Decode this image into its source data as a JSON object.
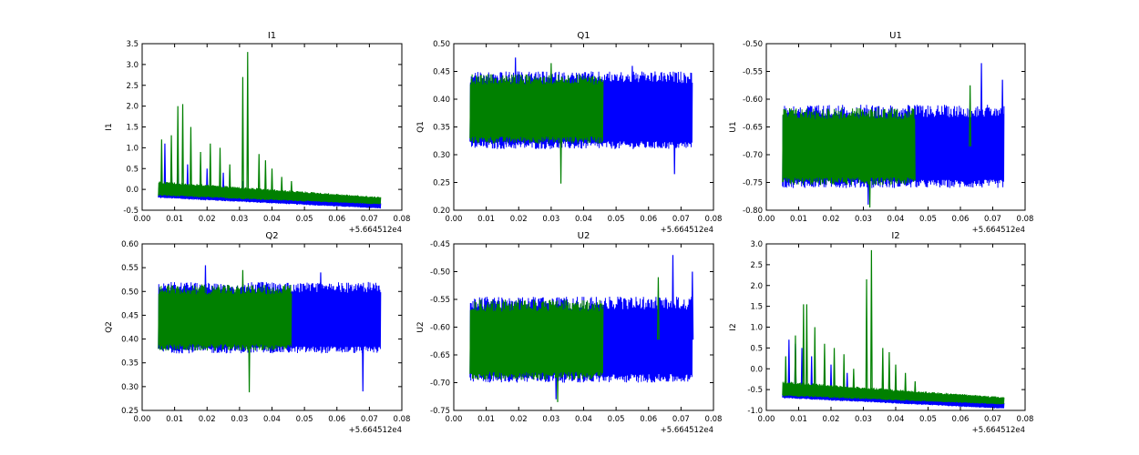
{
  "colors": {
    "series_a": "#0000ff",
    "series_b": "#008000"
  },
  "chart_data": [
    {
      "type": "line",
      "title": "I1",
      "xlabel": "",
      "ylabel": "I1",
      "x_offset_label": "+5.664512e4",
      "xlim": [
        0.0,
        0.08
      ],
      "ylim": [
        -0.5,
        3.5
      ],
      "xticks": [
        "0.00",
        "0.01",
        "0.02",
        "0.03",
        "0.04",
        "0.05",
        "0.06",
        "0.07",
        "0.08"
      ],
      "yticks": [
        "-0.5",
        "0.0",
        "0.5",
        "1.0",
        "1.5",
        "2.0",
        "2.5",
        "3.0",
        "3.5"
      ],
      "x_range": [
        0.005,
        0.0735
      ],
      "series": [
        {
          "color": "#0000ff",
          "baseline_start": -0.15,
          "baseline_end": -0.4,
          "band_low": -0.1,
          "band_high": 0.1,
          "dense_until": 0.0735,
          "spikes": [
            [
              0.007,
              1.1
            ],
            [
              0.009,
              0.7
            ],
            [
              0.011,
              0.9
            ],
            [
              0.014,
              0.6
            ],
            [
              0.02,
              0.5
            ],
            [
              0.025,
              0.4
            ],
            [
              0.031,
              0.2
            ]
          ]
        },
        {
          "color": "#008000",
          "baseline_start": -0.1,
          "baseline_end": -0.3,
          "band_low": -0.1,
          "band_high": 0.2,
          "dense_until": 0.0735,
          "spikes": [
            [
              0.006,
              1.2
            ],
            [
              0.009,
              1.3
            ],
            [
              0.011,
              2.0
            ],
            [
              0.0125,
              2.05
            ],
            [
              0.015,
              1.5
            ],
            [
              0.018,
              0.9
            ],
            [
              0.021,
              1.1
            ],
            [
              0.024,
              1.0
            ],
            [
              0.027,
              0.6
            ],
            [
              0.031,
              2.7
            ],
            [
              0.0325,
              3.3
            ],
            [
              0.036,
              0.85
            ],
            [
              0.038,
              0.7
            ],
            [
              0.04,
              0.5
            ],
            [
              0.043,
              0.3
            ],
            [
              0.046,
              0.2
            ]
          ]
        }
      ]
    },
    {
      "type": "line",
      "title": "Q1",
      "xlabel": "",
      "ylabel": "Q1",
      "x_offset_label": "+5.664512e4",
      "xlim": [
        0.0,
        0.08
      ],
      "ylim": [
        0.2,
        0.5
      ],
      "xticks": [
        "0.00",
        "0.01",
        "0.02",
        "0.03",
        "0.04",
        "0.05",
        "0.06",
        "0.07",
        "0.08"
      ],
      "yticks": [
        "0.20",
        "0.25",
        "0.30",
        "0.35",
        "0.40",
        "0.45",
        "0.50"
      ],
      "x_range": [
        0.005,
        0.0735
      ],
      "series": [
        {
          "color": "#0000ff",
          "band_low": 0.31,
          "band_high": 0.45,
          "dense_until": 0.0735,
          "spikes": [
            [
              0.019,
              0.475
            ],
            [
              0.068,
              0.265
            ],
            [
              0.055,
              0.46
            ]
          ]
        },
        {
          "color": "#008000",
          "band_low": 0.32,
          "band_high": 0.445,
          "dense_until": 0.046,
          "spikes": [
            [
              0.033,
              0.248
            ],
            [
              0.03,
              0.465
            ]
          ]
        }
      ]
    },
    {
      "type": "line",
      "title": "U1",
      "xlabel": "",
      "ylabel": "U1",
      "x_offset_label": "+5.664512e4",
      "xlim": [
        0.0,
        0.08
      ],
      "ylim": [
        -0.8,
        -0.5
      ],
      "xticks": [
        "0.00",
        "0.01",
        "0.02",
        "0.03",
        "0.04",
        "0.05",
        "0.06",
        "0.07",
        "0.08"
      ],
      "yticks": [
        "-0.80",
        "-0.75",
        "-0.70",
        "-0.65",
        "-0.60",
        "-0.55",
        "-0.50"
      ],
      "x_range": [
        0.005,
        0.0735
      ],
      "series": [
        {
          "color": "#0000ff",
          "band_low": -0.76,
          "band_high": -0.61,
          "dense_until": 0.0735,
          "spikes": [
            [
              0.0315,
              -0.79
            ],
            [
              0.0665,
              -0.535
            ],
            [
              0.073,
              -0.565
            ]
          ]
        },
        {
          "color": "#008000",
          "band_low": -0.755,
          "band_high": -0.615,
          "dense_until": 0.046,
          "spikes": [
            [
              0.032,
              -0.795
            ],
            [
              0.063,
              -0.575
            ]
          ]
        }
      ]
    },
    {
      "type": "line",
      "title": "Q2",
      "xlabel": "",
      "ylabel": "Q2",
      "x_offset_label": "+5.664512e4",
      "xlim": [
        0.0,
        0.08
      ],
      "ylim": [
        0.25,
        0.6
      ],
      "xticks": [
        "0.00",
        "0.01",
        "0.02",
        "0.03",
        "0.04",
        "0.05",
        "0.06",
        "0.07",
        "0.08"
      ],
      "yticks": [
        "0.25",
        "0.30",
        "0.35",
        "0.40",
        "0.45",
        "0.50",
        "0.55",
        "0.60"
      ],
      "x_range": [
        0.005,
        0.0735
      ],
      "series": [
        {
          "color": "#0000ff",
          "band_low": 0.37,
          "band_high": 0.52,
          "dense_until": 0.0735,
          "spikes": [
            [
              0.0195,
              0.555
            ],
            [
              0.068,
              0.29
            ],
            [
              0.055,
              0.54
            ]
          ]
        },
        {
          "color": "#008000",
          "band_low": 0.375,
          "band_high": 0.515,
          "dense_until": 0.046,
          "spikes": [
            [
              0.033,
              0.288
            ],
            [
              0.031,
              0.545
            ]
          ]
        }
      ]
    },
    {
      "type": "line",
      "title": "U2",
      "xlabel": "",
      "ylabel": "U2",
      "x_offset_label": "+5.664512e4",
      "xlim": [
        0.0,
        0.08
      ],
      "ylim": [
        -0.75,
        -0.45
      ],
      "xticks": [
        "0.00",
        "0.01",
        "0.02",
        "0.03",
        "0.04",
        "0.05",
        "0.06",
        "0.07",
        "0.08"
      ],
      "yticks": [
        "-0.75",
        "-0.70",
        "-0.65",
        "-0.60",
        "-0.55",
        "-0.50",
        "-0.45"
      ],
      "x_range": [
        0.005,
        0.0735
      ],
      "series": [
        {
          "color": "#0000ff",
          "band_low": -0.7,
          "band_high": -0.545,
          "dense_until": 0.0735,
          "spikes": [
            [
              0.0315,
              -0.73
            ],
            [
              0.0675,
              -0.47
            ],
            [
              0.0735,
              -0.5
            ]
          ]
        },
        {
          "color": "#008000",
          "band_low": -0.695,
          "band_high": -0.55,
          "dense_until": 0.046,
          "spikes": [
            [
              0.032,
              -0.735
            ],
            [
              0.063,
              -0.51
            ]
          ]
        }
      ]
    },
    {
      "type": "line",
      "title": "I2",
      "xlabel": "",
      "ylabel": "I2",
      "x_offset_label": "+5.664512e4",
      "xlim": [
        0.0,
        0.08
      ],
      "ylim": [
        -1.0,
        3.0
      ],
      "xticks": [
        "0.00",
        "0.01",
        "0.02",
        "0.03",
        "0.04",
        "0.05",
        "0.06",
        "0.07",
        "0.08"
      ],
      "yticks": [
        "-1.0",
        "-0.5",
        "0.0",
        "0.5",
        "1.0",
        "1.5",
        "2.0",
        "2.5",
        "3.0"
      ],
      "x_range": [
        0.005,
        0.0735
      ],
      "series": [
        {
          "color": "#0000ff",
          "baseline_start": -0.65,
          "baseline_end": -0.9,
          "band_low": -0.6,
          "band_high": -0.4,
          "dense_until": 0.0735,
          "spikes": [
            [
              0.007,
              0.7
            ],
            [
              0.009,
              0.6
            ],
            [
              0.011,
              0.5
            ],
            [
              0.014,
              0.3
            ],
            [
              0.02,
              0.1
            ],
            [
              0.025,
              -0.1
            ]
          ]
        },
        {
          "color": "#008000",
          "baseline_start": -0.6,
          "baseline_end": -0.8,
          "band_low": -0.6,
          "band_high": -0.3,
          "dense_until": 0.0735,
          "spikes": [
            [
              0.006,
              0.3
            ],
            [
              0.009,
              0.8
            ],
            [
              0.0115,
              1.55
            ],
            [
              0.0125,
              1.55
            ],
            [
              0.015,
              1.0
            ],
            [
              0.018,
              0.6
            ],
            [
              0.021,
              0.5
            ],
            [
              0.024,
              0.35
            ],
            [
              0.027,
              0.0
            ],
            [
              0.031,
              2.15
            ],
            [
              0.0325,
              2.85
            ],
            [
              0.036,
              0.5
            ],
            [
              0.038,
              0.4
            ],
            [
              0.04,
              0.1
            ],
            [
              0.043,
              -0.1
            ],
            [
              0.046,
              -0.3
            ]
          ]
        }
      ]
    }
  ]
}
